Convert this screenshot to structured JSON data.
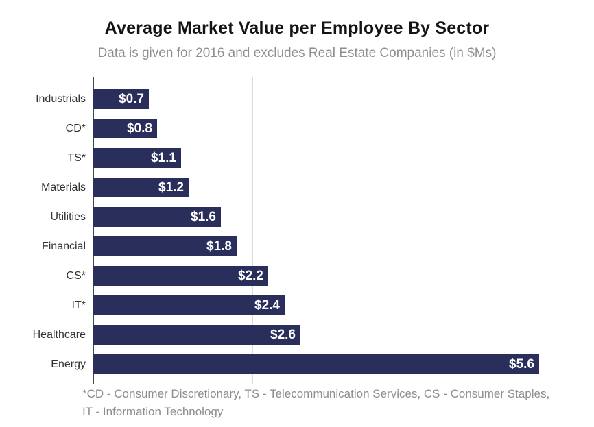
{
  "chart_data": {
    "type": "bar",
    "orientation": "horizontal",
    "title": "Average Market Value per Employee By Sector",
    "subtitle": "Data is given for 2016 and excludes Real Estate Companies (in $Ms)",
    "categories": [
      "Industrials",
      "CD*",
      "TS*",
      "Materials",
      "Utilities",
      "Financial",
      "CS*",
      "IT*",
      "Healthcare",
      "Energy"
    ],
    "values": [
      0.7,
      0.8,
      1.1,
      1.2,
      1.6,
      1.8,
      2.2,
      2.4,
      2.6,
      5.6
    ],
    "value_labels": [
      "$0.7",
      "$0.8",
      "$1.1",
      "$1.2",
      "$1.6",
      "$1.8",
      "$2.2",
      "$2.4",
      "$2.6",
      "$5.6"
    ],
    "xlabel": "",
    "ylabel": "",
    "xlim": [
      0,
      6.29
    ],
    "gridlines_x": [
      2,
      4,
      6
    ],
    "grid": "vertical gridlines only, no tick labels",
    "legend": "none",
    "bar_color": "#292e5b",
    "value_label_color": "#ffffff",
    "gridline_color": "#dcdcdc",
    "footnote_line1": "*CD - Consumer Discretionary, TS - Telecommunication Services, CS - Consumer Staples,",
    "footnote_line2": "IT - Information Technology"
  }
}
